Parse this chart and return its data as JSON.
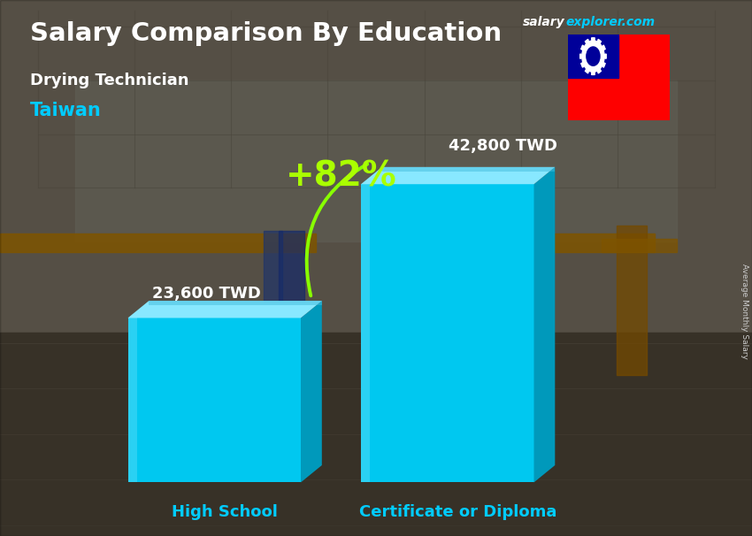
{
  "title_main": "Salary Comparison By Education",
  "subtitle_job": "Drying Technician",
  "subtitle_country": "Taiwan",
  "categories": [
    "High School",
    "Certificate or Diploma"
  ],
  "values": [
    23600,
    42800
  ],
  "value_labels": [
    "23,600 TWD",
    "42,800 TWD"
  ],
  "pct_change": "+82%",
  "bar_color_front": "#00C8F0",
  "bar_color_right": "#0099BB",
  "bar_color_top": "#88E8FF",
  "bar_color_top_dark": "#44BBDD",
  "title_color": "#FFFFFF",
  "subtitle_job_color": "#FFFFFF",
  "subtitle_country_color": "#00CCFF",
  "category_label_color": "#00CCFF",
  "value_label_color": "#FFFFFF",
  "pct_color": "#AAFF00",
  "arrow_color": "#88FF00",
  "side_label": "Average Monthly Salary",
  "side_label_color": "#CCCCCC",
  "salary_color": "#FFFFFF",
  "explorer_color": "#00CCFF",
  "title_fontsize": 21,
  "subtitle_job_fontsize": 13,
  "subtitle_country_fontsize": 15,
  "category_fontsize": 13,
  "value_fontsize": 13,
  "pct_fontsize": 28,
  "brand_fontsize": 10
}
